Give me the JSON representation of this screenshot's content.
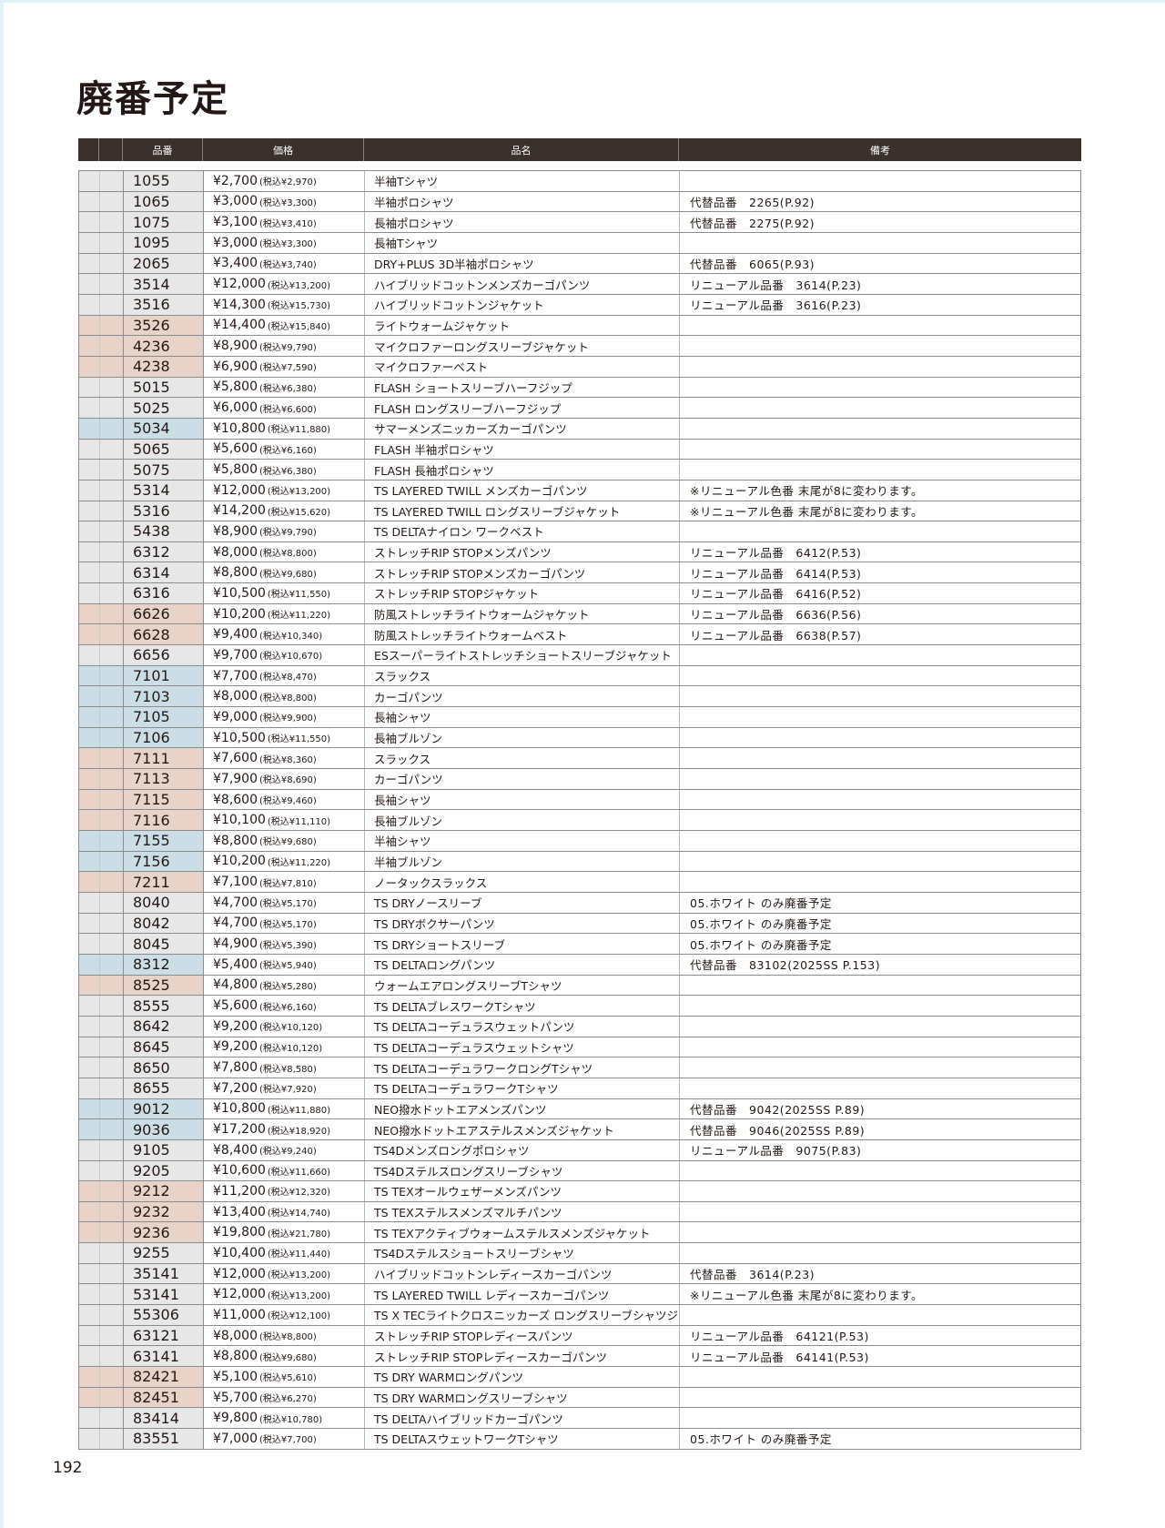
{
  "page_title": "廃番予定",
  "page_number": "192",
  "colors": {
    "grey": "#e7e7e7",
    "pink": "#e7d3c7",
    "blue": "#cbdde5",
    "header": "#3a302c"
  },
  "columns": {
    "code": "品番",
    "price": "価格",
    "name": "品名",
    "note": "備考"
  },
  "rows": [
    {
      "hl": "grey",
      "code": "1055",
      "price": "¥2,700",
      "tax": "(税込¥2,970)",
      "name": "半袖Tシャツ",
      "note": ""
    },
    {
      "hl": "grey",
      "code": "1065",
      "price": "¥3,000",
      "tax": "(税込¥3,300)",
      "name": "半袖ポロシャツ",
      "note": "代替品番　2265(P.92)"
    },
    {
      "hl": "grey",
      "code": "1075",
      "price": "¥3,100",
      "tax": "(税込¥3,410)",
      "name": "長袖ポロシャツ",
      "note": "代替品番　2275(P.92)"
    },
    {
      "hl": "grey",
      "code": "1095",
      "price": "¥3,000",
      "tax": "(税込¥3,300)",
      "name": "長袖Tシャツ",
      "note": ""
    },
    {
      "hl": "grey",
      "code": "2065",
      "price": "¥3,400",
      "tax": "(税込¥3,740)",
      "name": "DRY+PLUS 3D半袖ポロシャツ",
      "note": "代替品番　6065(P.93)"
    },
    {
      "hl": "grey",
      "code": "3514",
      "price": "¥12,000",
      "tax": "(税込¥13,200)",
      "name": "ハイブリッドコットンメンズカーゴパンツ",
      "note": "リニューアル品番　3614(P.23)"
    },
    {
      "hl": "grey",
      "code": "3516",
      "price": "¥14,300",
      "tax": "(税込¥15,730)",
      "name": "ハイブリッドコットンジャケット",
      "note": "リニューアル品番　3616(P.23)"
    },
    {
      "hl": "pink",
      "code": "3526",
      "price": "¥14,400",
      "tax": "(税込¥15,840)",
      "name": "ライトウォームジャケット",
      "note": ""
    },
    {
      "hl": "pink",
      "code": "4236",
      "price": "¥8,900",
      "tax": "(税込¥9,790)",
      "name": "マイクロファーロングスリーブジャケット",
      "note": ""
    },
    {
      "hl": "pink",
      "code": "4238",
      "price": "¥6,900",
      "tax": "(税込¥7,590)",
      "name": "マイクロファーベスト",
      "note": ""
    },
    {
      "hl": "grey",
      "code": "5015",
      "price": "¥5,800",
      "tax": "(税込¥6,380)",
      "name": "FLASH ショートスリーブハーフジップ",
      "note": ""
    },
    {
      "hl": "grey",
      "code": "5025",
      "price": "¥6,000",
      "tax": "(税込¥6,600)",
      "name": "FLASH ロングスリーブハーフジップ",
      "note": ""
    },
    {
      "hl": "blue",
      "code": "5034",
      "price": "¥10,800",
      "tax": "(税込¥11,880)",
      "name": "サマーメンズニッカーズカーゴパンツ",
      "note": ""
    },
    {
      "hl": "grey",
      "code": "5065",
      "price": "¥5,600",
      "tax": "(税込¥6,160)",
      "name": "FLASH 半袖ポロシャツ",
      "note": ""
    },
    {
      "hl": "grey",
      "code": "5075",
      "price": "¥5,800",
      "tax": "(税込¥6,380)",
      "name": "FLASH 長袖ポロシャツ",
      "note": ""
    },
    {
      "hl": "grey",
      "code": "5314",
      "price": "¥12,000",
      "tax": "(税込¥13,200)",
      "name": "TS LAYERED TWILL メンズカーゴパンツ",
      "note": "※リニューアル色番 末尾が8に変わります。"
    },
    {
      "hl": "grey",
      "code": "5316",
      "price": "¥14,200",
      "tax": "(税込¥15,620)",
      "name": "TS LAYERED TWILL ロングスリーブジャケット",
      "note": "※リニューアル色番 末尾が8に変わります。"
    },
    {
      "hl": "grey",
      "code": "5438",
      "price": "¥8,900",
      "tax": "(税込¥9,790)",
      "name": "TS DELTAナイロン ワークベスト",
      "note": ""
    },
    {
      "hl": "grey",
      "code": "6312",
      "price": "¥8,000",
      "tax": "(税込¥8,800)",
      "name": "ストレッチRIP STOPメンズパンツ",
      "note": "リニューアル品番　6412(P.53)"
    },
    {
      "hl": "grey",
      "code": "6314",
      "price": "¥8,800",
      "tax": "(税込¥9,680)",
      "name": "ストレッチRIP STOPメンズカーゴパンツ",
      "note": "リニューアル品番　6414(P.53)"
    },
    {
      "hl": "grey",
      "code": "6316",
      "price": "¥10,500",
      "tax": "(税込¥11,550)",
      "name": "ストレッチRIP STOPジャケット",
      "note": "リニューアル品番　6416(P.52)"
    },
    {
      "hl": "pink",
      "code": "6626",
      "price": "¥10,200",
      "tax": "(税込¥11,220)",
      "name": "防風ストレッチライトウォームジャケット",
      "note": "リニューアル品番　6636(P.56)"
    },
    {
      "hl": "pink",
      "code": "6628",
      "price": "¥9,400",
      "tax": "(税込¥10,340)",
      "name": "防風ストレッチライトウォームベスト",
      "note": "リニューアル品番　6638(P.57)"
    },
    {
      "hl": "grey",
      "code": "6656",
      "price": "¥9,700",
      "tax": "(税込¥10,670)",
      "name": "ESスーパーライトストレッチショートスリーブジャケット",
      "note": ""
    },
    {
      "hl": "blue",
      "code": "7101",
      "price": "¥7,700",
      "tax": "(税込¥8,470)",
      "name": "スラックス",
      "note": ""
    },
    {
      "hl": "blue",
      "code": "7103",
      "price": "¥8,000",
      "tax": "(税込¥8,800)",
      "name": "カーゴパンツ",
      "note": ""
    },
    {
      "hl": "blue",
      "code": "7105",
      "price": "¥9,000",
      "tax": "(税込¥9,900)",
      "name": "長袖シャツ",
      "note": ""
    },
    {
      "hl": "blue",
      "code": "7106",
      "price": "¥10,500",
      "tax": "(税込¥11,550)",
      "name": "長袖ブルゾン",
      "note": ""
    },
    {
      "hl": "pink",
      "code": "7111",
      "price": "¥7,600",
      "tax": "(税込¥8,360)",
      "name": "スラックス",
      "note": ""
    },
    {
      "hl": "pink",
      "code": "7113",
      "price": "¥7,900",
      "tax": "(税込¥8,690)",
      "name": "カーゴパンツ",
      "note": ""
    },
    {
      "hl": "pink",
      "code": "7115",
      "price": "¥8,600",
      "tax": "(税込¥9,460)",
      "name": "長袖シャツ",
      "note": ""
    },
    {
      "hl": "pink",
      "code": "7116",
      "price": "¥10,100",
      "tax": "(税込¥11,110)",
      "name": "長袖ブルゾン",
      "note": ""
    },
    {
      "hl": "blue",
      "code": "7155",
      "price": "¥8,800",
      "tax": "(税込¥9,680)",
      "name": "半袖シャツ",
      "note": ""
    },
    {
      "hl": "blue",
      "code": "7156",
      "price": "¥10,200",
      "tax": "(税込¥11,220)",
      "name": "半袖ブルゾン",
      "note": ""
    },
    {
      "hl": "pink",
      "code": "7211",
      "price": "¥7,100",
      "tax": "(税込¥7,810)",
      "name": "ノータックスラックス",
      "note": ""
    },
    {
      "hl": "grey",
      "code": "8040",
      "price": "¥4,700",
      "tax": "(税込¥5,170)",
      "name": "TS DRYノースリーブ",
      "note": "05.ホワイト のみ廃番予定"
    },
    {
      "hl": "grey",
      "code": "8042",
      "price": "¥4,700",
      "tax": "(税込¥5,170)",
      "name": "TS DRYボクサーパンツ",
      "note": "05.ホワイト のみ廃番予定"
    },
    {
      "hl": "grey",
      "code": "8045",
      "price": "¥4,900",
      "tax": "(税込¥5,390)",
      "name": "TS DRYショートスリーブ",
      "note": "05.ホワイト のみ廃番予定"
    },
    {
      "hl": "blue",
      "code": "8312",
      "price": "¥5,400",
      "tax": "(税込¥5,940)",
      "name": "TS DELTAロングパンツ",
      "note": "代替品番　83102(2025SS P.153)"
    },
    {
      "hl": "pink",
      "code": "8525",
      "price": "¥4,800",
      "tax": "(税込¥5,280)",
      "name": "ウォームエアロングスリーブTシャツ",
      "note": ""
    },
    {
      "hl": "grey",
      "code": "8555",
      "price": "¥5,600",
      "tax": "(税込¥6,160)",
      "name": "TS DELTAブレスワークTシャツ",
      "note": ""
    },
    {
      "hl": "grey",
      "code": "8642",
      "price": "¥9,200",
      "tax": "(税込¥10,120)",
      "name": "TS DELTAコーデュラスウェットパンツ",
      "note": ""
    },
    {
      "hl": "grey",
      "code": "8645",
      "price": "¥9,200",
      "tax": "(税込¥10,120)",
      "name": "TS DELTAコーデュラスウェットシャツ",
      "note": ""
    },
    {
      "hl": "grey",
      "code": "8650",
      "price": "¥7,800",
      "tax": "(税込¥8,580)",
      "name": "TS DELTAコーデュラワークロングTシャツ",
      "note": ""
    },
    {
      "hl": "grey",
      "code": "8655",
      "price": "¥7,200",
      "tax": "(税込¥7,920)",
      "name": "TS DELTAコーデュラワークTシャツ",
      "note": ""
    },
    {
      "hl": "blue",
      "code": "9012",
      "price": "¥10,800",
      "tax": "(税込¥11,880)",
      "name": "NEO撥水ドットエアメンズパンツ",
      "note": "代替品番　9042(2025SS P.89)"
    },
    {
      "hl": "blue",
      "code": "9036",
      "price": "¥17,200",
      "tax": "(税込¥18,920)",
      "name": "NEO撥水ドットエアステルスメンズジャケット",
      "note": "代替品番　9046(2025SS P.89)"
    },
    {
      "hl": "grey",
      "code": "9105",
      "price": "¥8,400",
      "tax": "(税込¥9,240)",
      "name": "TS4Dメンズロングポロシャツ",
      "note": "リニューアル品番　9075(P.83)"
    },
    {
      "hl": "grey",
      "code": "9205",
      "price": "¥10,600",
      "tax": "(税込¥11,660)",
      "name": "TS4Dステルスロングスリーブシャツ",
      "note": ""
    },
    {
      "hl": "pink",
      "code": "9212",
      "price": "¥11,200",
      "tax": "(税込¥12,320)",
      "name": "TS TEXオールウェザーメンズパンツ",
      "note": ""
    },
    {
      "hl": "pink",
      "code": "9232",
      "price": "¥13,400",
      "tax": "(税込¥14,740)",
      "name": "TS TEXステルスメンズマルチパンツ",
      "note": ""
    },
    {
      "hl": "pink",
      "code": "9236",
      "price": "¥19,800",
      "tax": "(税込¥21,780)",
      "name": "TS TEXアクティブウォームステルスメンズジャケット",
      "note": ""
    },
    {
      "hl": "grey",
      "code": "9255",
      "price": "¥10,400",
      "tax": "(税込¥11,440)",
      "name": "TS4Dステルスショートスリーブシャツ",
      "note": ""
    },
    {
      "hl": "grey",
      "code": "35141",
      "price": "¥12,000",
      "tax": "(税込¥13,200)",
      "name": "ハイブリッドコットンレディースカーゴパンツ",
      "note": "代替品番　3614(P.23)"
    },
    {
      "hl": "grey",
      "code": "53141",
      "price": "¥12,000",
      "tax": "(税込¥13,200)",
      "name": "TS LAYERED TWILL レディースカーゴパンツ",
      "note": "※リニューアル色番 末尾が8に変わります。"
    },
    {
      "hl": "grey",
      "code": "55306",
      "price": "¥11,000",
      "tax": "(税込¥12,100)",
      "name": "TS X TECライトクロスニッカーズ ロングスリーブシャツジャケット",
      "note": ""
    },
    {
      "hl": "grey",
      "code": "63121",
      "price": "¥8,000",
      "tax": "(税込¥8,800)",
      "name": "ストレッチRIP STOPレディースパンツ",
      "note": "リニューアル品番　64121(P.53)"
    },
    {
      "hl": "grey",
      "code": "63141",
      "price": "¥8,800",
      "tax": "(税込¥9,680)",
      "name": "ストレッチRIP STOPレディースカーゴパンツ",
      "note": "リニューアル品番　64141(P.53)"
    },
    {
      "hl": "pink",
      "code": "82421",
      "price": "¥5,100",
      "tax": "(税込¥5,610)",
      "name": "TS DRY WARMロングパンツ",
      "note": ""
    },
    {
      "hl": "pink",
      "code": "82451",
      "price": "¥5,700",
      "tax": "(税込¥6,270)",
      "name": "TS DRY WARMロングスリーブシャツ",
      "note": ""
    },
    {
      "hl": "grey",
      "code": "83414",
      "price": "¥9,800",
      "tax": "(税込¥10,780)",
      "name": "TS DELTAハイブリッドカーゴパンツ",
      "note": ""
    },
    {
      "hl": "grey",
      "code": "83551",
      "price": "¥7,000",
      "tax": "(税込¥7,700)",
      "name": "TS DELTAスウェットワークTシャツ",
      "note": "05.ホワイト のみ廃番予定"
    }
  ]
}
